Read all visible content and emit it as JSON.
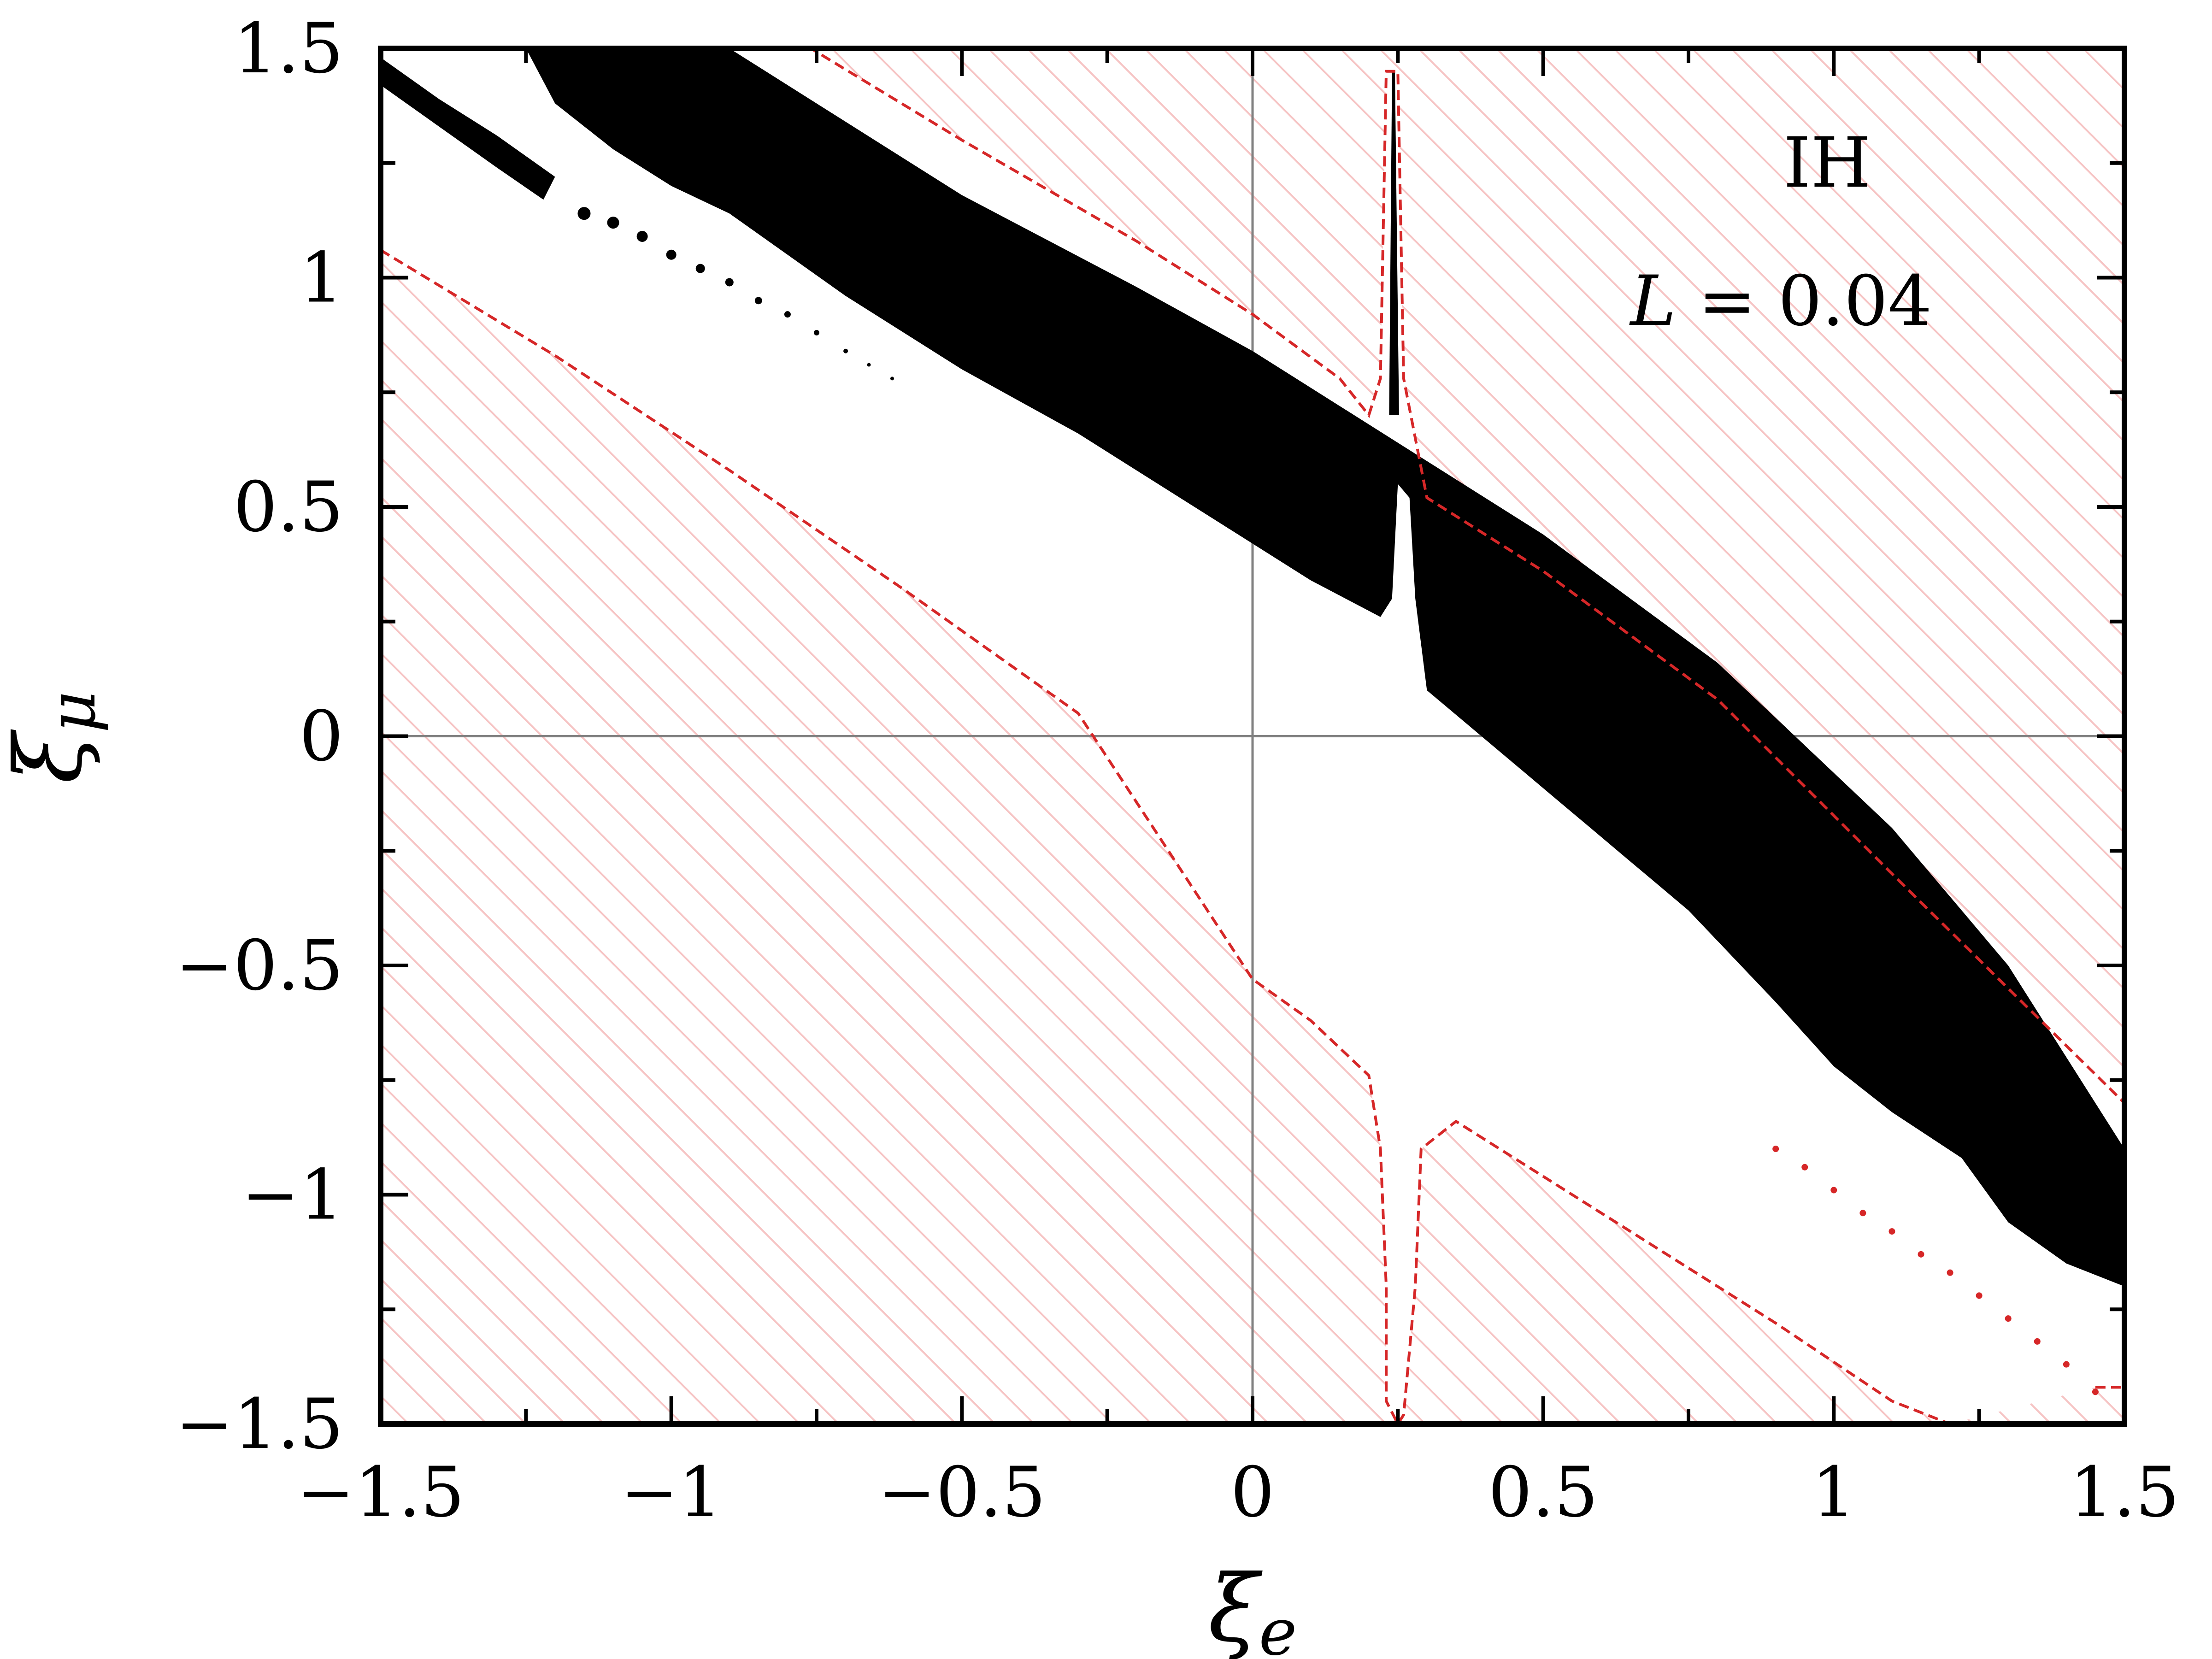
{
  "chart_data": {
    "type": "contour",
    "xlabel": "ξ",
    "xlabel_sub": "e",
    "ylabel": "ξ",
    "ylabel_sub": "μ",
    "xlim": [
      -1.5,
      1.5
    ],
    "ylim": [
      -1.5,
      1.5
    ],
    "xticks": [
      -1.5,
      -1,
      -0.5,
      0,
      0.5,
      1,
      1.5
    ],
    "yticks": [
      -1.5,
      -1,
      -0.5,
      0,
      0.5,
      1,
      1.5
    ],
    "xtick_labels": [
      "−1.5",
      "−1",
      "−0.5",
      "0",
      "0.5",
      "1",
      "1.5"
    ],
    "ytick_labels": [
      "−1.5",
      "−1",
      "−0.5",
      "0",
      "0.5",
      "1",
      "1.5"
    ],
    "annotations": {
      "hierarchy": "IH",
      "L_var": "L",
      "L_eq": " = 0.04"
    },
    "colors": {
      "allowed_region": "#000000",
      "excluded_hatch": "#f6c4c4",
      "boundary_line": "#d62728",
      "zero_lines": "#808080"
    },
    "regions": {
      "main_band": [
        [
          -1.25,
          1.5
        ],
        [
          -0.9,
          1.5
        ],
        [
          -0.5,
          1.18
        ],
        [
          -0.2,
          0.98
        ],
        [
          0.0,
          0.84
        ],
        [
          0.15,
          0.72
        ],
        [
          0.3,
          0.6
        ],
        [
          0.5,
          0.44
        ],
        [
          0.8,
          0.16
        ],
        [
          1.1,
          -0.2
        ],
        [
          1.3,
          -0.5
        ],
        [
          1.5,
          -0.9
        ],
        [
          1.5,
          -1.2
        ],
        [
          1.4,
          -1.15
        ],
        [
          1.3,
          -1.06
        ],
        [
          1.22,
          -0.92
        ],
        [
          1.1,
          -0.82
        ],
        [
          1.0,
          -0.72
        ],
        [
          0.9,
          -0.58
        ],
        [
          0.75,
          -0.38
        ],
        [
          0.6,
          -0.22
        ],
        [
          0.45,
          -0.06
        ],
        [
          0.3,
          0.1
        ],
        [
          0.28,
          0.3
        ],
        [
          0.27,
          0.52
        ],
        [
          0.25,
          0.55
        ],
        [
          0.24,
          0.3
        ],
        [
          0.22,
          0.26
        ],
        [
          0.1,
          0.34
        ],
        [
          -0.05,
          0.46
        ],
        [
          -0.3,
          0.66
        ],
        [
          -0.5,
          0.8
        ],
        [
          -0.7,
          0.96
        ],
        [
          -0.9,
          1.14
        ],
        [
          -1.0,
          1.2
        ],
        [
          -1.1,
          1.28
        ],
        [
          -1.2,
          1.38
        ],
        [
          -1.25,
          1.5
        ]
      ],
      "spike": [
        [
          0.235,
          0.7
        ],
        [
          0.24,
          1.45
        ],
        [
          0.245,
          1.45
        ],
        [
          0.252,
          0.7
        ]
      ],
      "upper_left_streak": [
        [
          -1.52,
          1.48
        ],
        [
          -1.5,
          1.42
        ],
        [
          -1.4,
          1.33
        ],
        [
          -1.3,
          1.24
        ],
        [
          -1.22,
          1.17
        ],
        [
          -1.2,
          1.22
        ],
        [
          -1.3,
          1.31
        ],
        [
          -1.4,
          1.39
        ],
        [
          -1.5,
          1.48
        ]
      ],
      "dots_upper_left": [
        [
          -1.15,
          1.14
        ],
        [
          -1.1,
          1.12
        ],
        [
          -1.05,
          1.09
        ],
        [
          -1.0,
          1.05
        ],
        [
          -0.95,
          1.02
        ],
        [
          -0.9,
          0.99
        ],
        [
          -0.85,
          0.95
        ],
        [
          -0.8,
          0.92
        ],
        [
          -0.75,
          0.88
        ],
        [
          -0.7,
          0.84
        ],
        [
          -0.66,
          0.81
        ],
        [
          -0.62,
          0.78
        ]
      ],
      "dots_lower_right": [
        [
          0.9,
          -0.9
        ],
        [
          0.95,
          -0.94
        ],
        [
          1.0,
          -0.99
        ],
        [
          1.05,
          -1.04
        ],
        [
          1.1,
          -1.08
        ],
        [
          1.15,
          -1.13
        ],
        [
          1.2,
          -1.17
        ],
        [
          1.25,
          -1.22
        ],
        [
          1.3,
          -1.27
        ],
        [
          1.35,
          -1.32
        ],
        [
          1.4,
          -1.37
        ],
        [
          1.45,
          -1.43
        ]
      ],
      "upper_boundary": [
        [
          -1.52,
          1.5
        ],
        [
          -0.76,
          1.5
        ],
        [
          -0.5,
          1.3
        ],
        [
          -0.2,
          1.08
        ],
        [
          0.0,
          0.92
        ],
        [
          0.15,
          0.78
        ],
        [
          0.2,
          0.7
        ],
        [
          0.22,
          0.78
        ],
        [
          0.23,
          1.45
        ],
        [
          0.25,
          1.45
        ],
        [
          0.26,
          0.78
        ],
        [
          0.3,
          0.52
        ],
        [
          0.5,
          0.36
        ],
        [
          0.8,
          0.08
        ],
        [
          1.1,
          -0.3
        ],
        [
          1.3,
          -0.55
        ],
        [
          1.5,
          -0.8
        ]
      ],
      "lower_boundary": [
        [
          -1.5,
          1.06
        ],
        [
          -1.2,
          0.82
        ],
        [
          -0.9,
          0.56
        ],
        [
          -0.6,
          0.28
        ],
        [
          -0.3,
          0.02
        ],
        [
          0.0,
          -0.22
        ],
        [
          0.1,
          -0.35
        ],
        [
          0.2,
          -0.52
        ],
        [
          0.0,
          -0.52
        ],
        [
          -0.3,
          -0.25
        ],
        [
          -0.6,
          0.02
        ],
        [
          -0.9,
          0.3
        ]
      ],
      "lower_left_boundary": [
        [
          -1.5,
          1.06
        ],
        [
          -1.2,
          0.83
        ],
        [
          -0.9,
          0.58
        ],
        [
          -0.6,
          0.32
        ],
        [
          -0.5,
          0.23
        ],
        [
          -0.3,
          0.05
        ],
        [
          0.0,
          -0.53
        ],
        [
          0.1,
          -0.62
        ],
        [
          0.2,
          -0.74
        ],
        [
          0.22,
          -0.9
        ],
        [
          0.23,
          -1.2
        ],
        [
          0.23,
          -1.45
        ],
        [
          0.25,
          -1.5
        ],
        [
          0.26,
          -1.48
        ],
        [
          0.28,
          -1.2
        ],
        [
          0.29,
          -0.9
        ],
        [
          0.35,
          -0.84
        ],
        [
          0.6,
          -1.04
        ],
        [
          0.9,
          -1.28
        ],
        [
          1.1,
          -1.45
        ],
        [
          1.2,
          -1.5
        ]
      ],
      "lower_right_boundary": [
        [
          1.45,
          -1.42
        ],
        [
          1.5,
          -1.42
        ]
      ]
    }
  }
}
